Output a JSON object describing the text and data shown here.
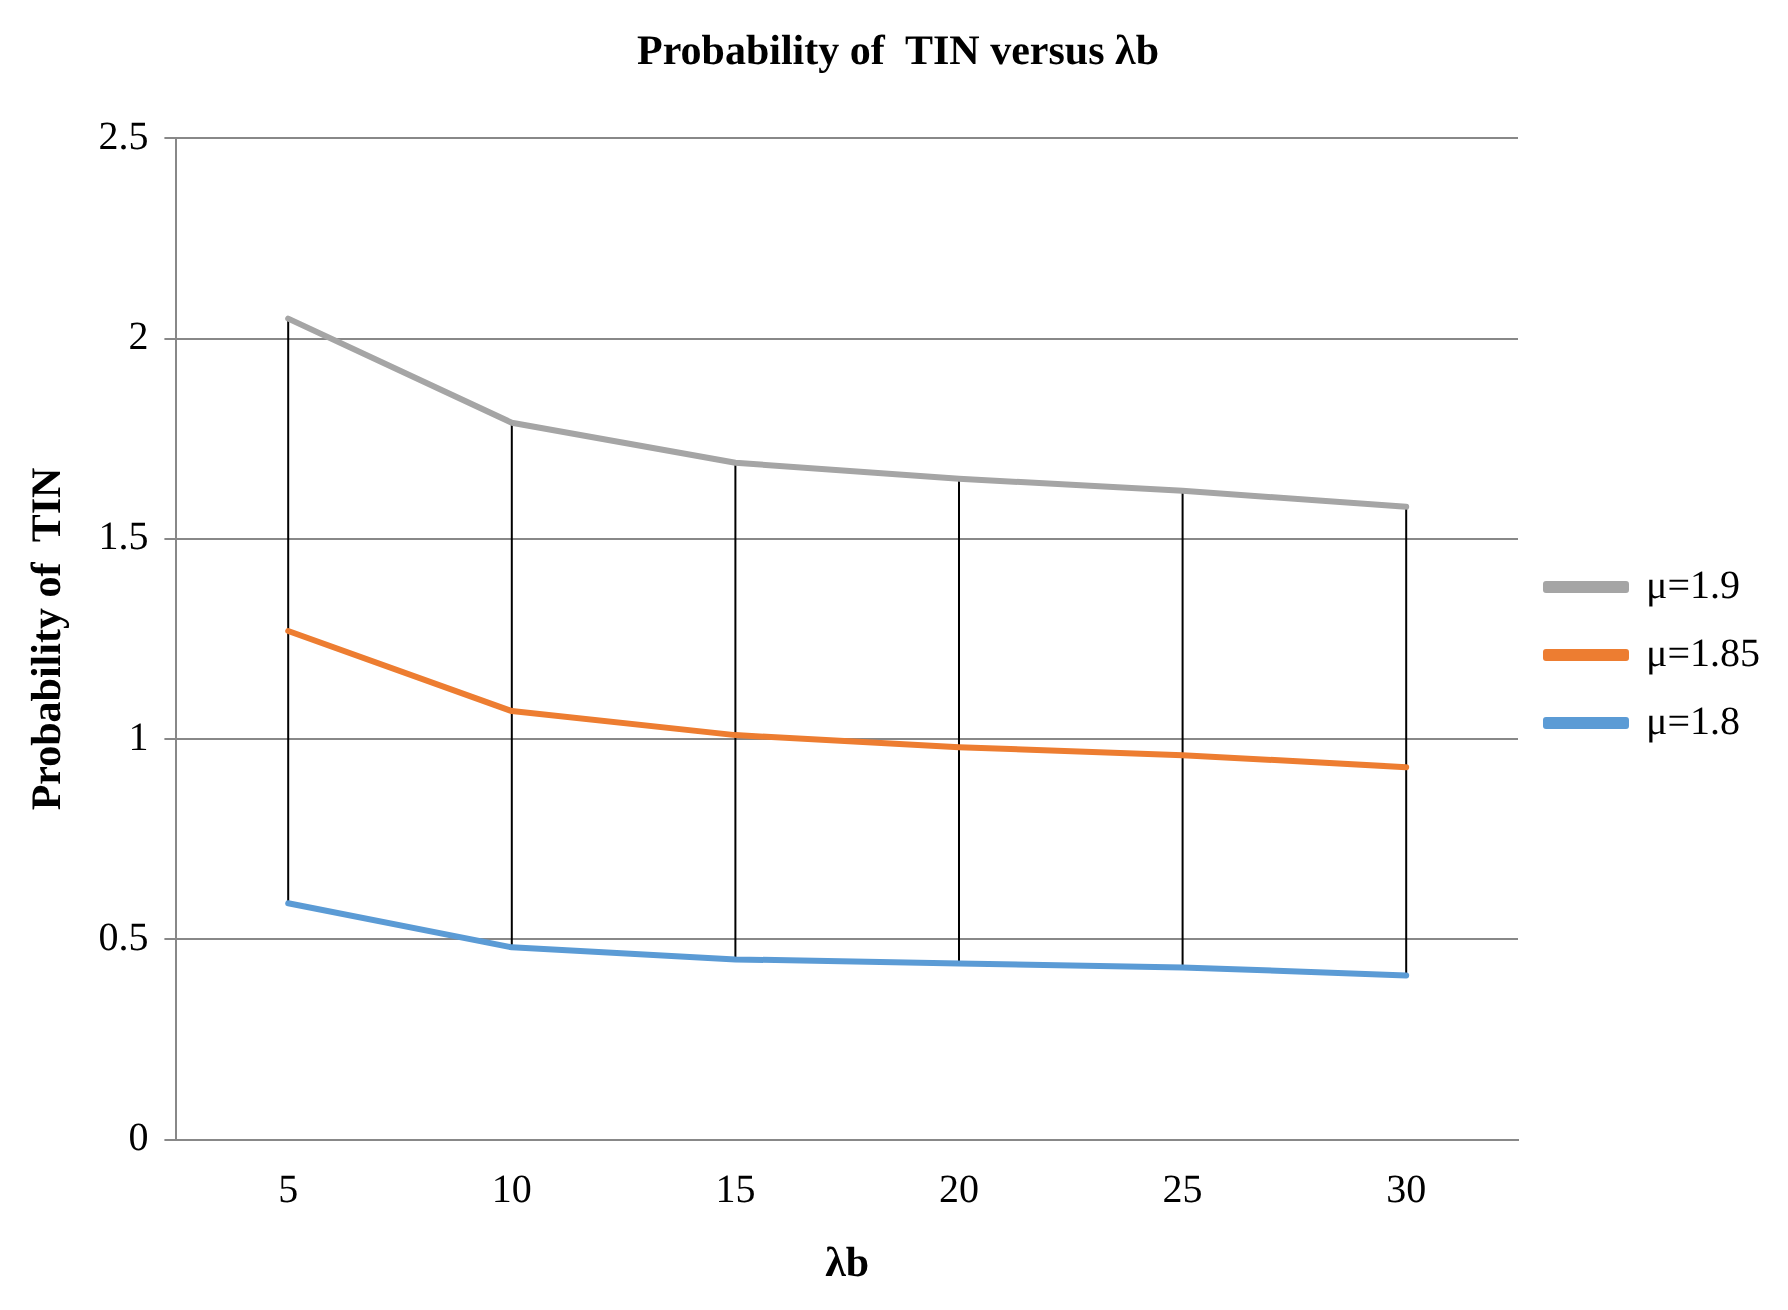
{
  "chart_data": {
    "type": "line",
    "title": "Probability of  TIN versus λb",
    "xlabel": "λb",
    "ylabel": "Probability of  TIN",
    "categories": [
      "5",
      "10",
      "15",
      "20",
      "25",
      "30"
    ],
    "series": [
      {
        "name": "μ=1.9",
        "color": "#a5a5a5",
        "values": [
          2.05,
          1.79,
          1.69,
          1.65,
          1.62,
          1.58
        ]
      },
      {
        "name": "μ=1.85",
        "color": "#ed7d31",
        "values": [
          1.27,
          1.07,
          1.01,
          0.98,
          0.96,
          0.93
        ],
        "errors": [
          [
            0.59,
            2.05
          ],
          [
            0.48,
            1.79
          ],
          [
            0.45,
            1.69
          ],
          [
            0.44,
            1.65
          ],
          [
            0.43,
            1.62
          ],
          [
            0.41,
            1.58
          ]
        ]
      },
      {
        "name": "μ=1.8",
        "color": "#5b9bd5",
        "values": [
          0.59,
          0.48,
          0.45,
          0.44,
          0.43,
          0.41
        ]
      }
    ],
    "ylim": [
      0,
      2.5
    ],
    "yticks": [
      0,
      0.5,
      1,
      1.5,
      2,
      2.5
    ],
    "grid": "y",
    "legend": "right",
    "marker": "none",
    "line_style": "solid"
  }
}
